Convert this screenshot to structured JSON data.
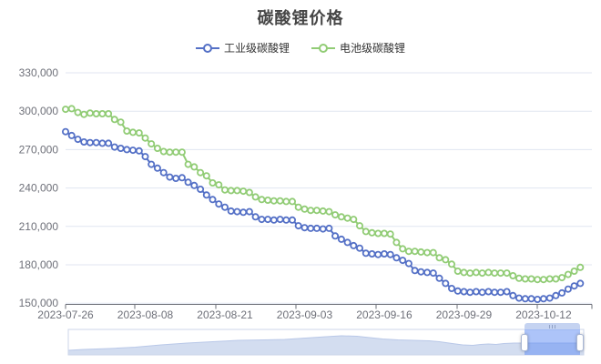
{
  "title": {
    "text": "碳酸锂价格"
  },
  "legend": {
    "items": [
      {
        "label": "工业级碳酸锂",
        "color": "#5470c6"
      },
      {
        "label": "电池级碳酸锂",
        "color": "#91cc75"
      }
    ]
  },
  "colors": {
    "axis_label": "#6E7079",
    "axis_line": "#6E7079",
    "grid_line": "#E0E6F1",
    "series_industrial": "#5470c6",
    "series_battery": "#91cc75",
    "background": "#ffffff"
  },
  "chart_data": {
    "type": "line",
    "title": "碳酸锂价格",
    "xlabel": "",
    "ylabel": "",
    "x_start_date": "2023-07-26",
    "x_end_date": "2023-10-18",
    "x_tick_labels": [
      "2023-07-26",
      "2023-08-08",
      "2023-08-21",
      "2023-09-03",
      "2023-09-16",
      "2023-09-29",
      "2023-10-12"
    ],
    "x_tick_day_indices": [
      0,
      13,
      26,
      39,
      52,
      65,
      78
    ],
    "y_tick_labels": [
      "150,000",
      "180,000",
      "210,000",
      "240,000",
      "270,000",
      "300,000",
      "330,000"
    ],
    "ylim": [
      150000,
      330000
    ],
    "y_interval": 30000,
    "grid": true,
    "legend_position": "top",
    "symbol": "emptyCircle",
    "series": [
      {
        "name": "工业级碳酸锂",
        "color": "#5470c6",
        "values": [
          284000,
          281000,
          278000,
          276000,
          275500,
          275500,
          275000,
          275000,
          272000,
          271000,
          270000,
          269500,
          269000,
          264500,
          258500,
          255500,
          252000,
          248500,
          247500,
          248000,
          244500,
          242000,
          239000,
          234500,
          231000,
          227500,
          225000,
          222000,
          221500,
          221000,
          221500,
          217500,
          215500,
          215500,
          215000,
          215500,
          215000,
          215000,
          210500,
          209000,
          208500,
          208500,
          208000,
          208500,
          202500,
          200000,
          197500,
          195000,
          193000,
          189000,
          188500,
          188000,
          188500,
          188000,
          185500,
          183500,
          181000,
          175500,
          174500,
          174000,
          173500,
          169500,
          165500,
          161500,
          159500,
          159000,
          158500,
          159000,
          158500,
          159000,
          158500,
          158500,
          159000,
          156000,
          154000,
          153500,
          153500,
          153000,
          153500,
          154000,
          156000,
          158000,
          161000,
          163500,
          165500
        ]
      },
      {
        "name": "电池级碳酸锂",
        "color": "#91cc75",
        "values": [
          301500,
          302000,
          299000,
          297500,
          298500,
          298000,
          298000,
          298000,
          293500,
          291500,
          284500,
          283500,
          283000,
          279000,
          274500,
          271000,
          268500,
          268000,
          268000,
          268000,
          258500,
          256500,
          252000,
          249500,
          244000,
          242500,
          238500,
          238000,
          238000,
          237500,
          236500,
          233000,
          231000,
          230500,
          230000,
          230000,
          229500,
          229500,
          225000,
          223500,
          222500,
          222500,
          222000,
          221500,
          219000,
          217500,
          216500,
          215500,
          210500,
          206000,
          205000,
          204500,
          204500,
          204000,
          197500,
          192500,
          190500,
          190500,
          190000,
          189500,
          189500,
          185500,
          184000,
          180500,
          175000,
          174000,
          173500,
          174000,
          173500,
          174000,
          173500,
          173500,
          173500,
          171500,
          169500,
          169000,
          169000,
          168500,
          168500,
          169000,
          169000,
          170000,
          172500,
          175000,
          178000
        ]
      }
    ]
  },
  "datazoom": {
    "selection": {
      "start_pct": 88.5,
      "end_pct": 99.3,
      "fill": "rgba(92,138,244,0.5)"
    },
    "track": {
      "border_color": "#ccd6ea",
      "area_fill": "#d3ddf0",
      "line_color": "#b9c8e8"
    },
    "handle": {
      "fill": "#ffffff",
      "border": "#a9b7d4"
    },
    "move_handle": {
      "fill": "#c5d3f1",
      "grip_color": "#8fa0c4"
    },
    "profile": [
      [
        0,
        5
      ],
      [
        0.03,
        6
      ],
      [
        0.08,
        7
      ],
      [
        0.13,
        8.5
      ],
      [
        0.18,
        11
      ],
      [
        0.23,
        13
      ],
      [
        0.28,
        14.5
      ],
      [
        0.33,
        16
      ],
      [
        0.38,
        16.5
      ],
      [
        0.42,
        17
      ],
      [
        0.46,
        18.5
      ],
      [
        0.5,
        20
      ],
      [
        0.53,
        21
      ],
      [
        0.56,
        20.5
      ],
      [
        0.585,
        19
      ],
      [
        0.61,
        17.5
      ],
      [
        0.64,
        16.5
      ],
      [
        0.67,
        16
      ],
      [
        0.7,
        15.5
      ],
      [
        0.72,
        14.5
      ],
      [
        0.745,
        12.5
      ],
      [
        0.765,
        11
      ],
      [
        0.785,
        10.5
      ],
      [
        0.8,
        11.5
      ],
      [
        0.815,
        12
      ],
      [
        0.83,
        11.5
      ],
      [
        0.845,
        12.5
      ],
      [
        0.865,
        13
      ],
      [
        0.9,
        13
      ],
      [
        0.94,
        13
      ],
      [
        1,
        13
      ]
    ]
  }
}
